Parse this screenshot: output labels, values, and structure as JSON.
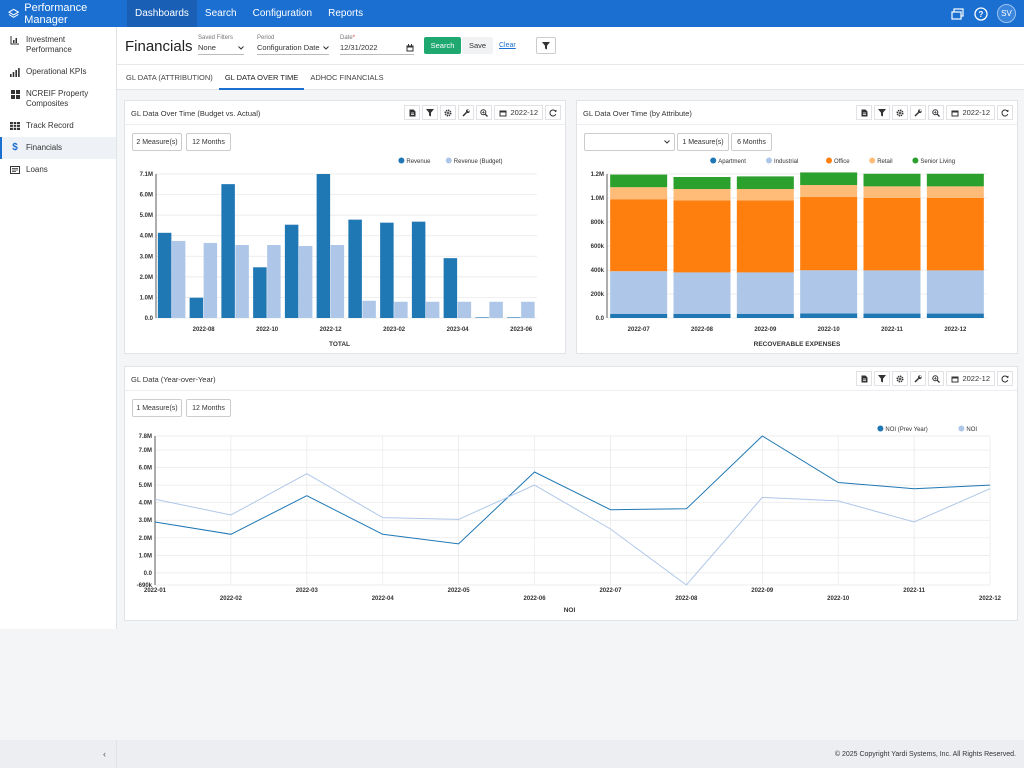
{
  "app": {
    "title": "Performance Manager"
  },
  "nav": {
    "items": [
      "Dashboards",
      "Search",
      "Configuration",
      "Reports"
    ],
    "active": 0
  },
  "user": {
    "initials": "SV"
  },
  "sidebar": {
    "items": [
      {
        "label": "Investment Performance",
        "icon": "bar-chart-icon"
      },
      {
        "label": "Operational KPIs",
        "icon": "signal-bars-icon"
      },
      {
        "label": "NCREIF Property Composites",
        "icon": "grid-icon"
      },
      {
        "label": "Track Record",
        "icon": "table-icon"
      },
      {
        "label": "Financials",
        "icon": "dollar-icon"
      },
      {
        "label": "Loans",
        "icon": "document-icon"
      }
    ],
    "active": 4,
    "collapse_glyph": "‹"
  },
  "header": {
    "title": "Financials",
    "saved_filters": {
      "label": "Saved Filters",
      "value": "None"
    },
    "period": {
      "label": "Period",
      "value": "Configuration Date"
    },
    "date": {
      "label": "Date",
      "required_mark": "*",
      "value": "12/31/2022"
    },
    "search_label": "Search",
    "save_label": "Save",
    "clear_label": "Clear"
  },
  "tabs": [
    "GL DATA (ATTRIBUTION)",
    "GL DATA OVER TIME",
    "ADHOC FINANCIALS"
  ],
  "active_tab": 1,
  "panels": {
    "budget": {
      "title": "GL Data Over Time (Budget vs. Actual)",
      "date": "2022-12",
      "measures": "2 Measure(s)",
      "months": "12 Months"
    },
    "attribute": {
      "title": "GL Data Over Time (by Attribute)",
      "date": "2022-12",
      "attribute_select": "",
      "measures": "1 Measure(s)",
      "months": "6 Months"
    },
    "yoy": {
      "title": "GL Data (Year-over-Year)",
      "date": "2022-12",
      "measures": "1 Measure(s)",
      "months": "12 Months"
    }
  },
  "chart_data": [
    {
      "type": "bar",
      "xlabel": "TOTAL",
      "categories": [
        "2022-07",
        "2022-08",
        "2022-09",
        "2022-10",
        "2022-11",
        "2022-12",
        "2023-01",
        "2023-02",
        "2023-03",
        "2023-04",
        "2023-05",
        "2023-06"
      ],
      "tick_labels": [
        "2022-08",
        "2022-10",
        "2022-12",
        "2023-02",
        "2023-04",
        "2023-06"
      ],
      "yticks": [
        "0.0",
        "1.0M",
        "2.0M",
        "3.0M",
        "4.0M",
        "5.0M",
        "6.0M",
        "7.1M"
      ],
      "ylim": [
        0,
        7100000
      ],
      "series": [
        {
          "name": "Revenue",
          "color": "#1f77b4",
          "values": [
            4200000,
            1000000,
            6600000,
            2500000,
            4600000,
            7100000,
            4850000,
            4700000,
            4750000,
            2950000,
            30000,
            30000
          ]
        },
        {
          "name": "Revenue (Budget)",
          "color": "#aec7e8",
          "values": [
            3800000,
            3700000,
            3600000,
            3600000,
            3550000,
            3600000,
            850000,
            800000,
            800000,
            800000,
            800000,
            800000
          ]
        }
      ],
      "legend": "top-right",
      "grid": true
    },
    {
      "type": "bar",
      "stacked": true,
      "xlabel": "RECOVERABLE EXPENSES",
      "categories": [
        "2022-07",
        "2022-08",
        "2022-09",
        "2022-10",
        "2022-11",
        "2022-12"
      ],
      "yticks": [
        "0.0",
        "200k",
        "400k",
        "600k",
        "800k",
        "1.0M",
        "1.2M"
      ],
      "ylim": [
        0,
        1200000
      ],
      "series": [
        {
          "name": "Apartment",
          "color": "#1f77b4",
          "values": [
            35000,
            35000,
            35000,
            38000,
            37000,
            37000
          ]
        },
        {
          "name": "Industrial",
          "color": "#aec7e8",
          "values": [
            355000,
            345000,
            345000,
            360000,
            360000,
            360000
          ]
        },
        {
          "name": "Office",
          "color": "#ff7f0e",
          "values": [
            600000,
            600000,
            600000,
            610000,
            605000,
            605000
          ]
        },
        {
          "name": "Retail",
          "color": "#ffbb78",
          "values": [
            100000,
            95000,
            95000,
            100000,
            95000,
            95000
          ]
        },
        {
          "name": "Senior Living",
          "color": "#2ca02c",
          "values": [
            105000,
            100000,
            105000,
            105000,
            105000,
            105000
          ]
        }
      ],
      "legend": "top-right",
      "grid": true
    },
    {
      "type": "line",
      "xlabel": "NOI",
      "categories": [
        "2022-01",
        "2022-02",
        "2022-03",
        "2022-04",
        "2022-05",
        "2022-06",
        "2022-07",
        "2022-08",
        "2022-09",
        "2022-10",
        "2022-11",
        "2022-12"
      ],
      "yticks": [
        "-690k",
        "0.0",
        "1.0M",
        "2.0M",
        "3.0M",
        "4.0M",
        "5.0M",
        "6.0M",
        "7.0M",
        "7.8M"
      ],
      "ylim": [
        -690000,
        7800000
      ],
      "series": [
        {
          "name": "NOI (Prev Year)",
          "color": "#1f77b4",
          "values": [
            2900000,
            2200000,
            4400000,
            2200000,
            1650000,
            5750000,
            3600000,
            3650000,
            7800000,
            5150000,
            4800000,
            5000000
          ]
        },
        {
          "name": "NOI",
          "color": "#aec7e8",
          "values": [
            4200000,
            3300000,
            5650000,
            3150000,
            3050000,
            5000000,
            2500000,
            -690000,
            4300000,
            4100000,
            2900000,
            4800000
          ]
        }
      ],
      "legend": "top-right",
      "grid": true
    }
  ],
  "footer": {
    "copyright": "© 2025 Copyright Yardi Systems, Inc. All Rights Reserved."
  }
}
